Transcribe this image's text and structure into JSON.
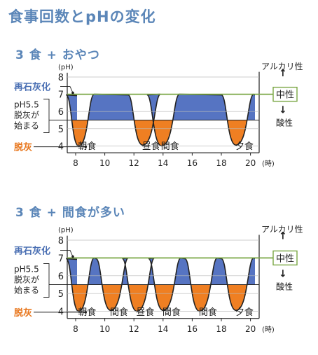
{
  "title": "食事回数とpHの変化",
  "colors": {
    "title": "#5b86b8",
    "acid_fill": "#ef7f22",
    "base_fill": "#5674c2",
    "neutral_line": "#7aa745",
    "label_blue": "#4a6fb3",
    "label_orange": "#e8761c",
    "ink": "#222222"
  },
  "labels": {
    "ph_unit": "(pH)",
    "hour_unit": "(時)",
    "remineralization": "再石灰化",
    "threshold_line1": "pH5.5",
    "threshold_line2": "脱灰が",
    "threshold_line3": "始まる",
    "demineralization": "脱灰",
    "alkaline": "アルカリ性",
    "neutral": "中性",
    "acidic": "酸性",
    "up_arrow": "↑",
    "down_arrow": "↓"
  },
  "axes": {
    "ph_ticks": [
      "8",
      "7",
      "6",
      "5",
      "4"
    ],
    "hour_ticks": [
      "8",
      "10",
      "12",
      "14",
      "16",
      "18",
      "20"
    ],
    "neutral_ph": 7,
    "threshold_ph": 5.5
  },
  "panels": [
    {
      "subtitle": "3 食 + おやつ",
      "meals": [
        {
          "label": "朝食",
          "time": 8.3
        },
        {
          "label": "昼食",
          "time": 12.7
        },
        {
          "label": "間食",
          "time": 14.0
        },
        {
          "label": "夕食",
          "time": 19.1
        }
      ]
    },
    {
      "subtitle": "3 食 + 間食が多い",
      "meals": [
        {
          "label": "朝食",
          "time": 8.3
        },
        {
          "label": "間食",
          "time": 10.5
        },
        {
          "label": "昼食",
          "time": 12.3
        },
        {
          "label": "間食",
          "time": 14.1
        },
        {
          "label": "間食",
          "time": 16.6
        },
        {
          "label": "夕食",
          "time": 19.1
        }
      ]
    }
  ]
}
